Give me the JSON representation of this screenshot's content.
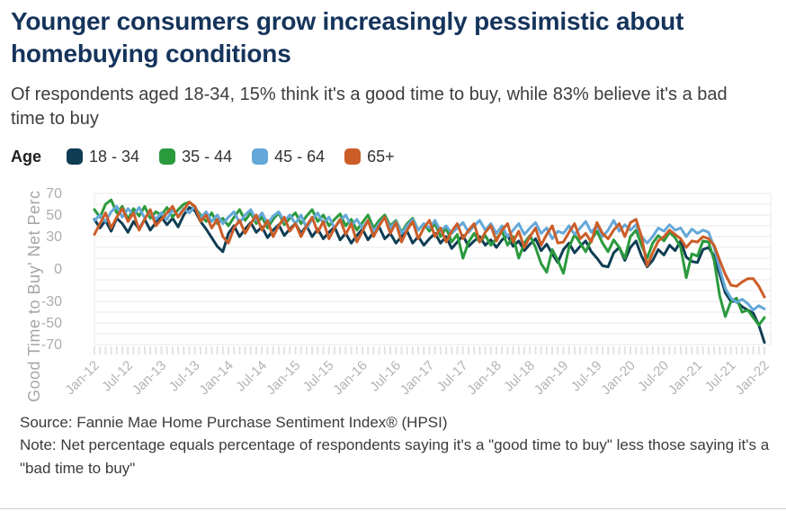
{
  "header": {
    "title": "Younger consumers grow increasingly pessimistic about homebuying conditions",
    "subtitle": "Of respondents aged 18-34, 15% think it's a good time to buy, while 83% believe it's a bad time to buy"
  },
  "legend": {
    "label": "Age"
  },
  "chart_data": {
    "type": "line",
    "ylabel": "Good Time to Buy' Net Perc",
    "ylim": [
      -75,
      75
    ],
    "y_ticks": [
      70,
      50,
      30,
      0,
      -30,
      -50,
      -70
    ],
    "grid": "horizontal-every-10",
    "legend_position": "top",
    "x_unit": "month",
    "x_range": [
      "Jan-12",
      "Jan-22"
    ],
    "x_tick_labels": [
      "Jan-12",
      "Jul-12",
      "Jan-13",
      "Jul-13",
      "Jan-14",
      "Jul-14",
      "Jan-15",
      "Jul-15",
      "Jan-16",
      "Jul-16",
      "Jan-17",
      "Jul-17",
      "Jan-18",
      "Jul-18",
      "Jan-19",
      "Jul-19",
      "Jan-20",
      "Jul-20",
      "Jan-21",
      "Jul-21",
      "Jan-22"
    ],
    "series": [
      {
        "name": "18 - 34",
        "color": "#0f3d54",
        "values": [
          46,
          38,
          45,
          35,
          47,
          42,
          34,
          44,
          37,
          46,
          36,
          43,
          48,
          41,
          47,
          39,
          50,
          57,
          54,
          44,
          37,
          29,
          21,
          16,
          33,
          40,
          30,
          37,
          43,
          34,
          39,
          29,
          36,
          41,
          31,
          37,
          42,
          33,
          40,
          30,
          37,
          28,
          34,
          39,
          27,
          33,
          24,
          31,
          37,
          27,
          34,
          39,
          28,
          33,
          24,
          30,
          35,
          24,
          30,
          22,
          28,
          33,
          24,
          30,
          19,
          25,
          31,
          21,
          26,
          30,
          22,
          27,
          20,
          27,
          31,
          21,
          26,
          17,
          23,
          28,
          17,
          23,
          14,
          6,
          18,
          24,
          15,
          21,
          26,
          16,
          10,
          3,
          2,
          15,
          20,
          8,
          20,
          26,
          12,
          2,
          8,
          18,
          13,
          22,
          17,
          26,
          11,
          7,
          6,
          18,
          20,
          12,
          -5,
          -22,
          -30,
          -30,
          -35,
          -38,
          -41,
          -52,
          -68
        ]
      },
      {
        "name": "35 - 44",
        "color": "#2b9a3d",
        "values": [
          55,
          48,
          60,
          64,
          52,
          58,
          46,
          56,
          49,
          58,
          47,
          53,
          50,
          57,
          48,
          55,
          60,
          62,
          57,
          50,
          44,
          52,
          42,
          47,
          40,
          48,
          55,
          45,
          52,
          42,
          48,
          38,
          46,
          52,
          41,
          47,
          52,
          42,
          49,
          55,
          44,
          50,
          40,
          46,
          51,
          40,
          46,
          36,
          43,
          50,
          38,
          45,
          50,
          40,
          45,
          34,
          42,
          47,
          36,
          42,
          35,
          42,
          30,
          38,
          25,
          32,
          10,
          25,
          33,
          25,
          31,
          22,
          28,
          35,
          22,
          30,
          10,
          24,
          31,
          20,
          5,
          -3,
          18,
          8,
          -4,
          20,
          32,
          24,
          16,
          27,
          35,
          24,
          16,
          27,
          20,
          10,
          30,
          36,
          22,
          10,
          24,
          31,
          26,
          34,
          29,
          20,
          -8,
          14,
          12,
          26,
          25,
          8,
          -25,
          -44,
          -30,
          -27,
          -40,
          -38,
          -45,
          -52,
          -45
        ]
      },
      {
        "name": "45 - 64",
        "color": "#64a8d9",
        "values": [
          45,
          50,
          44,
          53,
          58,
          48,
          56,
          50,
          57,
          47,
          53,
          46,
          52,
          46,
          55,
          49,
          56,
          52,
          58,
          47,
          53,
          44,
          50,
          42,
          48,
          53,
          43,
          50,
          55,
          45,
          52,
          42,
          49,
          53,
          44,
          50,
          42,
          50,
          38,
          46,
          52,
          42,
          48,
          38,
          45,
          50,
          40,
          46,
          38,
          45,
          35,
          42,
          48,
          38,
          44,
          33,
          40,
          46,
          36,
          42,
          38,
          45,
          35,
          40,
          33,
          38,
          43,
          34,
          40,
          45,
          36,
          42,
          33,
          40,
          30,
          36,
          42,
          32,
          38,
          43,
          33,
          38,
          28,
          35,
          33,
          40,
          32,
          38,
          44,
          34,
          40,
          30,
          36,
          45,
          35,
          41,
          36,
          41,
          30,
          24,
          30,
          38,
          35,
          41,
          36,
          38,
          30,
          37,
          33,
          36,
          34,
          20,
          0,
          -18,
          -27,
          -31,
          -28,
          -32,
          -38,
          -34,
          -37
        ]
      },
      {
        "name": "65+",
        "color": "#cb5d28",
        "values": [
          32,
          42,
          52,
          38,
          48,
          56,
          44,
          52,
          36,
          46,
          55,
          40,
          46,
          52,
          58,
          48,
          55,
          62,
          58,
          44,
          50,
          38,
          46,
          30,
          24,
          38,
          45,
          33,
          42,
          50,
          36,
          45,
          30,
          40,
          48,
          35,
          42,
          30,
          40,
          48,
          34,
          44,
          28,
          38,
          46,
          32,
          42,
          25,
          35,
          45,
          30,
          40,
          48,
          33,
          43,
          25,
          36,
          44,
          28,
          38,
          45,
          30,
          38,
          25,
          35,
          42,
          28,
          36,
          42,
          25,
          34,
          40,
          26,
          36,
          42,
          25,
          35,
          20,
          30,
          38,
          22,
          32,
          40,
          24,
          25,
          34,
          42,
          28,
          33,
          25,
          43,
          33,
          28,
          36,
          42,
          30,
          43,
          46,
          30,
          3,
          15,
          26,
          30,
          36,
          32,
          28,
          20,
          26,
          25,
          30,
          28,
          22,
          8,
          -5,
          -15,
          -16,
          -12,
          -9,
          -9,
          -16,
          -26
        ]
      }
    ]
  },
  "footer": {
    "source": "Source: Fannie Mae Home Purchase Sentiment Index® (HPSI)",
    "note": "Note: Net percentage equals percentage of respondents saying it's a \"good time to buy\" less those saying it's a \"bad time to buy\""
  }
}
